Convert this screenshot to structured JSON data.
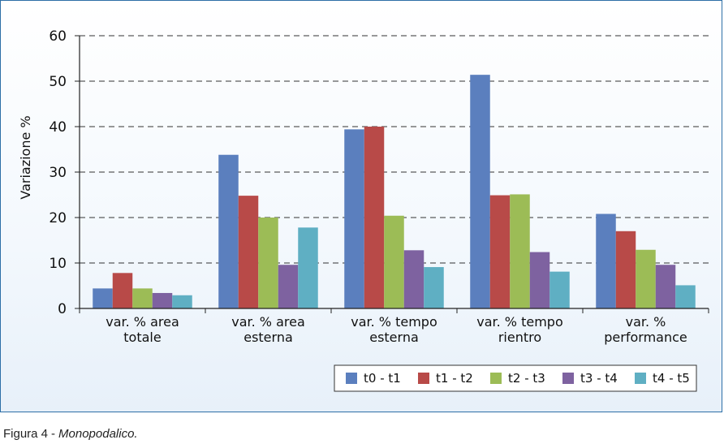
{
  "chart_data": {
    "type": "bar",
    "title": "",
    "xlabel": "",
    "ylabel": "Variazione %",
    "ylim": [
      0,
      60
    ],
    "yticks": [
      0,
      10,
      20,
      30,
      40,
      50,
      60
    ],
    "grid": "dashed horizontal",
    "legend_position": "bottom-right",
    "categories": [
      [
        "var. % area",
        "totale"
      ],
      [
        "var. % area",
        "esterna"
      ],
      [
        "var. % tempo",
        "esterna"
      ],
      [
        "var. % tempo",
        "rientro"
      ],
      [
        "var. %",
        "performance"
      ]
    ],
    "series": [
      {
        "name": "t0 - t1",
        "color": "#5b7fbe",
        "values": [
          4.4,
          33.8,
          39.4,
          51.4,
          20.8
        ]
      },
      {
        "name": "t1 - t2",
        "color": "#b84a48",
        "values": [
          7.8,
          24.8,
          40.0,
          24.9,
          17.0
        ]
      },
      {
        "name": "t2 - t3",
        "color": "#9cbc56",
        "values": [
          4.4,
          20.0,
          20.4,
          25.1,
          12.9
        ]
      },
      {
        "name": "t3 - t4",
        "color": "#7e62a0",
        "values": [
          3.4,
          9.6,
          12.8,
          12.4,
          9.6
        ]
      },
      {
        "name": "t4 - t5",
        "color": "#5fafc3",
        "values": [
          2.9,
          17.8,
          9.1,
          8.1,
          5.1
        ]
      }
    ]
  },
  "caption": {
    "label": "Figura 4",
    "separator": "-",
    "text": "Monopodalico."
  }
}
